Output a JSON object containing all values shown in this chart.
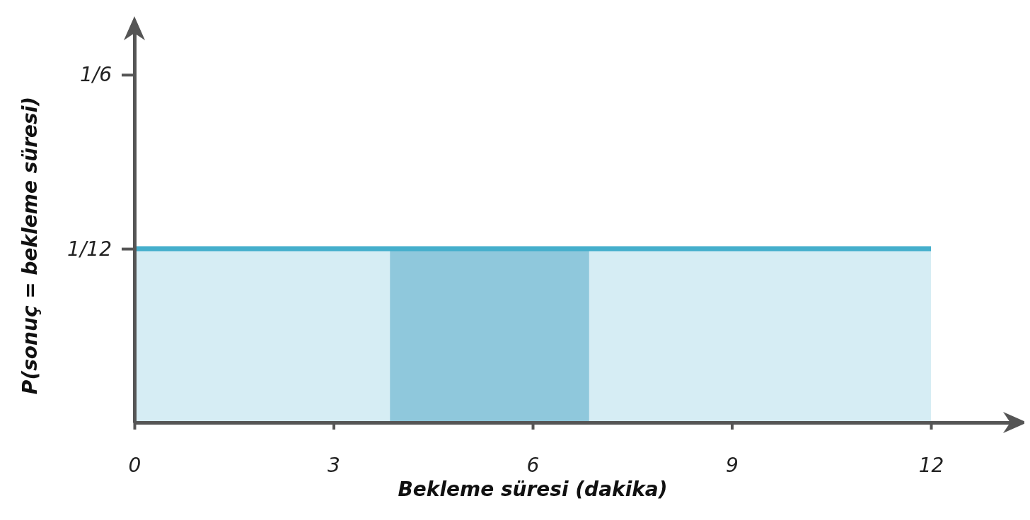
{
  "chart_data": {
    "type": "area",
    "xlabel": "Bekleme süresi (dakika)",
    "ylabel": "P(sonuç = bekleme süresi)",
    "x": [
      0,
      12
    ],
    "series": [
      {
        "color": "#45afcc",
        "values": [
          0.0833,
          0.0833
        ]
      }
    ],
    "xlim": [
      0,
      13.3
    ],
    "xticks": [
      0,
      3,
      6,
      9,
      12
    ],
    "ylim": [
      0,
      0.19
    ],
    "yticks": [
      {
        "value": 0.0833,
        "label": "1/12"
      },
      {
        "value": 0.1667,
        "label": "1/6"
      }
    ],
    "bands": [
      {
        "axis": "x",
        "from": 3.85,
        "to": 6.85,
        "color": "#8fc8dc"
      }
    ],
    "grid": false
  }
}
